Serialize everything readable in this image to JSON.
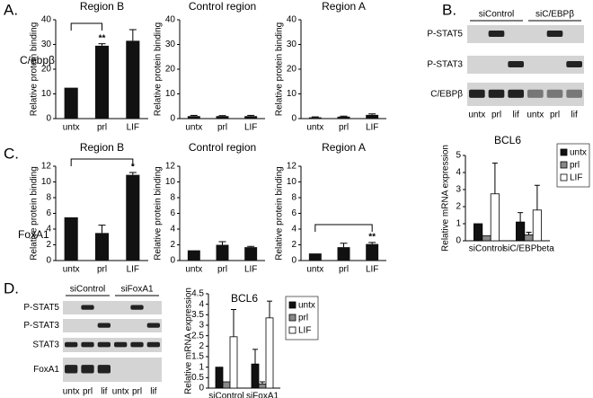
{
  "figure": {
    "panels": [
      "A.",
      "B.",
      "C.",
      "D."
    ],
    "row_labels": [
      "C/ebpβ",
      "FoxA1"
    ],
    "blots": [
      {
        "header": [
          "siControl",
          "siC/EBPβ"
        ],
        "rows": [
          "P-STAT5",
          "P-STAT3",
          "C/EBPβ"
        ],
        "lanes": [
          "untx",
          "prl",
          "lif",
          "untx",
          "prl",
          "lif"
        ]
      },
      {
        "header": [
          "siControl",
          "siFoxA1"
        ],
        "rows": [
          "P-STAT5",
          "P-STAT3",
          "STAT3",
          "FoxA1"
        ],
        "lanes": [
          "untx",
          "prl",
          "lif",
          "untx",
          "prl",
          "lif"
        ]
      }
    ]
  },
  "chart_data": [
    {
      "type": "bar",
      "title": "Region B",
      "ylabel": "Relative protein binding",
      "categories": [
        "untx",
        "prl",
        "LIF"
      ],
      "values": [
        12.5,
        29.5,
        31.5
      ],
      "errors": [
        0,
        0.8,
        4.5
      ],
      "significance": [
        null,
        "**",
        null
      ],
      "bracket": [
        0,
        1
      ],
      "color": "#111111",
      "ylim": [
        0,
        40
      ],
      "yticks": [
        0,
        10,
        20,
        30,
        40
      ]
    },
    {
      "type": "bar",
      "title": "Control region",
      "ylabel": "Relative protein binding",
      "categories": [
        "untx",
        "prl",
        "LIF"
      ],
      "values": [
        1,
        1,
        1
      ],
      "errors": [
        0.3,
        0.2,
        0.3
      ],
      "color": "#111111",
      "ylim": [
        0,
        40
      ],
      "yticks": [
        0,
        10,
        20,
        30,
        40
      ]
    },
    {
      "type": "bar",
      "title": "Region A",
      "ylabel": "Relative protein binding",
      "categories": [
        "untx",
        "prl",
        "LIF"
      ],
      "values": [
        0.5,
        0.8,
        1.5
      ],
      "errors": [
        0.2,
        0.2,
        0.4
      ],
      "color": "#111111",
      "ylim": [
        0,
        40
      ],
      "yticks": [
        0,
        10,
        20,
        30,
        40
      ]
    },
    {
      "type": "grouped_bar",
      "title": "BCL6",
      "ylabel": "Relative mRNA expression",
      "categories": [
        "siControl",
        "siC/EBPbeta"
      ],
      "series": [
        {
          "name": "untx",
          "color": "#111111",
          "values": [
            1,
            1.1
          ],
          "errors": [
            0,
            0.55
          ]
        },
        {
          "name": "prl",
          "color": "#888888",
          "values": [
            0.3,
            0.35
          ],
          "errors": [
            0,
            0.15
          ]
        },
        {
          "name": "LIF",
          "color": "#ffffff",
          "values": [
            2.75,
            1.8
          ],
          "errors": [
            1.8,
            1.45
          ]
        }
      ],
      "ylim": [
        0,
        5
      ],
      "yticks": [
        0,
        1,
        2,
        3,
        4,
        5
      ]
    },
    {
      "type": "bar",
      "title": "Region B",
      "ylabel": "Relative protein binding",
      "categories": [
        "untx",
        "prl",
        "LIF"
      ],
      "values": [
        5.5,
        3.5,
        10.9
      ],
      "errors": [
        0,
        1,
        0.3
      ],
      "significance": [
        null,
        null,
        "*"
      ],
      "bracket": [
        0,
        2
      ],
      "color": "#111111",
      "ylim": [
        0,
        12
      ],
      "yticks": [
        0,
        2,
        4,
        6,
        8,
        10,
        12
      ]
    },
    {
      "type": "bar",
      "title": "Control region",
      "ylabel": "Relative protein binding",
      "categories": [
        "untx",
        "prl",
        "LIF"
      ],
      "values": [
        1.3,
        2,
        1.7
      ],
      "errors": [
        0,
        0.4,
        0.1
      ],
      "color": "#111111",
      "ylim": [
        0,
        12
      ],
      "yticks": [
        0,
        2,
        4,
        6,
        8,
        10,
        12
      ]
    },
    {
      "type": "bar",
      "title": "Region A",
      "ylabel": "Relative protein binding",
      "categories": [
        "untx",
        "prl",
        "LIF"
      ],
      "values": [
        0.9,
        1.7,
        2.1
      ],
      "errors": [
        0,
        0.5,
        0.2
      ],
      "significance": [
        null,
        null,
        "**"
      ],
      "bracket": [
        0,
        2
      ],
      "color": "#111111",
      "ylim": [
        0,
        12
      ],
      "yticks": [
        0,
        2,
        4,
        6,
        8,
        10,
        12
      ]
    },
    {
      "type": "grouped_bar",
      "title": "BCL6",
      "ylabel": "Relative mRNA expression",
      "categories": [
        "siControl",
        "siFoxA1"
      ],
      "series": [
        {
          "name": "untx",
          "color": "#111111",
          "values": [
            1,
            1.15
          ],
          "errors": [
            0,
            0.7
          ]
        },
        {
          "name": "prl",
          "color": "#888888",
          "values": [
            0.3,
            0.2
          ],
          "errors": [
            0,
            0.1
          ]
        },
        {
          "name": "LIF",
          "color": "#ffffff",
          "values": [
            2.45,
            3.35
          ],
          "errors": [
            1.3,
            0.8
          ]
        }
      ],
      "ylim": [
        0,
        4.5
      ],
      "yticks": [
        0,
        0.5,
        1,
        1.5,
        2,
        2.5,
        3,
        3.5,
        4,
        4.5
      ]
    }
  ]
}
